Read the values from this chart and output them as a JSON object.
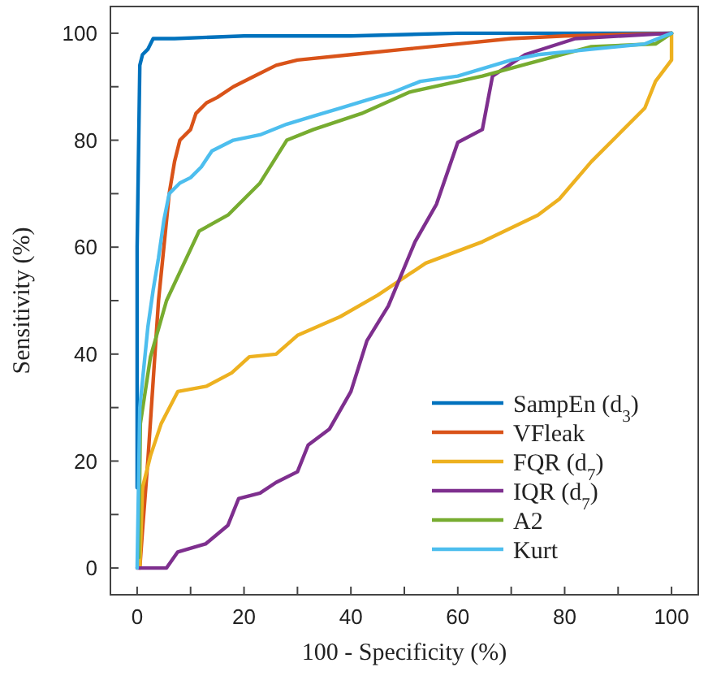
{
  "chart_data": {
    "type": "line",
    "xlabel": "100 - Specificity (%)",
    "ylabel": "Sensitivity (%)",
    "xlim": [
      -5,
      105
    ],
    "ylim": [
      -5,
      105
    ],
    "xticks": [
      0,
      {
        "value": 10,
        "label": null
      },
      20,
      {
        "value": 30,
        "label": null
      },
      40,
      {
        "value": 50,
        "label": null
      },
      60,
      {
        "value": 70,
        "label": null
      },
      80,
      {
        "value": 90,
        "label": null
      },
      100
    ],
    "yticks": [
      0,
      {
        "value": 10,
        "label": null
      },
      20,
      {
        "value": 30,
        "label": null
      },
      40,
      {
        "value": 50,
        "label": null
      },
      60,
      {
        "value": 70,
        "label": null
      },
      80,
      {
        "value": 90,
        "label": null
      },
      100
    ],
    "grid": false,
    "legend": "bottom right",
    "line_style": "solid",
    "series": [
      {
        "name": "SampEn (d$_{3}$)",
        "color": "#0072bd",
        "x": [
          0,
          0,
          0.5,
          1,
          2,
          3,
          7,
          20,
          40,
          60,
          100
        ],
        "values": [
          15,
          60,
          94,
          96,
          97,
          99,
          99,
          99.5,
          99.5,
          100,
          100
        ]
      },
      {
        "name": "VFleak",
        "color": "#d95319",
        "x": [
          0.5,
          1,
          2,
          3,
          4,
          5,
          6,
          7,
          8,
          10,
          11,
          13,
          15,
          18,
          22,
          26,
          30,
          40,
          50,
          60,
          70,
          80,
          100
        ],
        "values": [
          0,
          7,
          20,
          35,
          50,
          60,
          70,
          76,
          80,
          82,
          85,
          87,
          88,
          90,
          92,
          94,
          95,
          96,
          97,
          98,
          99,
          99.5,
          100
        ]
      },
      {
        "name": "FQR (d$_{7}$)",
        "color": "#edb120",
        "x": [
          0.5,
          1,
          2.5,
          4.5,
          7.6,
          13,
          17.7,
          21,
          26,
          30,
          38,
          45,
          54,
          64.6,
          75,
          79,
          85,
          90,
          95,
          97,
          100,
          100
        ],
        "values": [
          0,
          15,
          21,
          27,
          33,
          34,
          36.5,
          39.5,
          40,
          43.5,
          47,
          51,
          57,
          61,
          66,
          69,
          76,
          81,
          86,
          91,
          95,
          100
        ]
      },
      {
        "name": "IQR (d$_{7}$)",
        "color": "#7e2f8e",
        "x": [
          0,
          5.5,
          7.6,
          12.8,
          17,
          19,
          23,
          26,
          30,
          32,
          36,
          40,
          43,
          47,
          52,
          56,
          60,
          64.6,
          66.5,
          72.6,
          82,
          100
        ],
        "values": [
          0,
          0,
          3,
          4.5,
          8,
          13,
          14,
          16,
          18,
          23,
          26,
          33,
          42.5,
          49,
          61,
          68,
          79.6,
          82,
          92,
          96,
          99,
          100
        ]
      },
      {
        "name": "A2",
        "color": "#77ac30",
        "x": [
          0.3,
          0.6,
          2.5,
          5.5,
          11.6,
          17,
          23,
          28,
          33,
          42,
          51,
          64.6,
          72,
          85,
          97,
          100
        ],
        "values": [
          2,
          27,
          39.5,
          50,
          63,
          66,
          72,
          80,
          82,
          85,
          89,
          92,
          94,
          97.5,
          98,
          100
        ]
      },
      {
        "name": "Kurt",
        "color": "#4dbeee",
        "x": [
          0,
          0.5,
          2,
          3,
          4,
          5,
          6,
          8,
          10,
          12,
          14,
          18,
          23,
          28,
          33,
          38,
          43,
          48,
          53,
          60,
          70,
          75,
          85,
          95,
          100
        ],
        "values": [
          0,
          30,
          45,
          52,
          58,
          65,
          70,
          72,
          73,
          75,
          78,
          80,
          81,
          83,
          84.5,
          86,
          87.5,
          89,
          91,
          92,
          95,
          96,
          97,
          98,
          100
        ]
      }
    ]
  }
}
